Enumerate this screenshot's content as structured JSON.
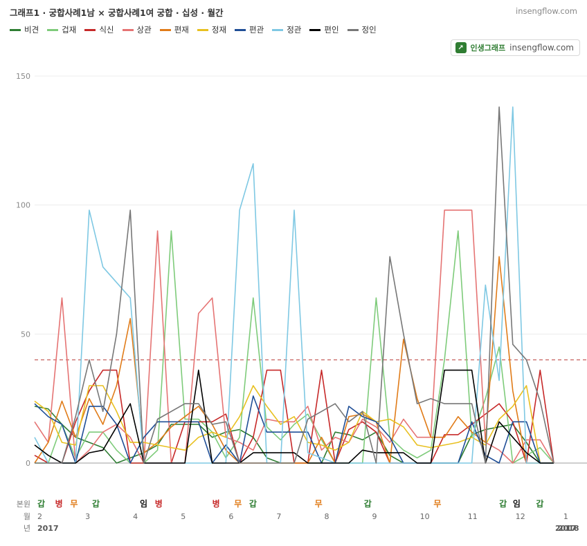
{
  "header": {
    "title": "그래프1 · 궁합사례1남 × 궁합사례1여 궁합 · 십성 · 월간",
    "site": "insengflow.com"
  },
  "badge": {
    "logo_text": "↗",
    "brand": "인생그래프",
    "site": "insengflow.com"
  },
  "chart_data": {
    "type": "line",
    "ylim": [
      0,
      150
    ],
    "y_ticks": [
      0,
      50,
      100,
      150
    ],
    "threshold": 40,
    "threshold_color": "#c0504d",
    "x_count": 38,
    "row_labels": {
      "bonwon": "본원",
      "month": "월",
      "year": "년"
    },
    "months": [
      {
        "i": 0,
        "label": "2"
      },
      {
        "i": 3.5,
        "label": "3"
      },
      {
        "i": 7,
        "label": "4"
      },
      {
        "i": 10.5,
        "label": "5"
      },
      {
        "i": 14,
        "label": "6"
      },
      {
        "i": 17.5,
        "label": "7"
      },
      {
        "i": 21,
        "label": "8"
      },
      {
        "i": 24.5,
        "label": "9"
      },
      {
        "i": 28,
        "label": "10"
      },
      {
        "i": 31.5,
        "label": "11"
      },
      {
        "i": 35,
        "label": "12"
      },
      {
        "i": 38.5,
        "label": "1"
      }
    ],
    "years": [
      {
        "i": 0,
        "label": "2017"
      },
      {
        "i": 37.9,
        "label": "2017"
      },
      {
        "i": 38.1,
        "label": "2018"
      }
    ],
    "bonwon": [
      {
        "i": 0,
        "char": "갑",
        "color": "#2e7d32"
      },
      {
        "i": 1.3,
        "char": "병",
        "color": "#c62828"
      },
      {
        "i": 2.4,
        "char": "무",
        "color": "#e07b18"
      },
      {
        "i": 4,
        "char": "갑",
        "color": "#2e7d32"
      },
      {
        "i": 7.5,
        "char": "임",
        "color": "#111111"
      },
      {
        "i": 8.6,
        "char": "병",
        "color": "#c62828"
      },
      {
        "i": 12.8,
        "char": "병",
        "color": "#c62828"
      },
      {
        "i": 14.4,
        "char": "무",
        "color": "#e07b18"
      },
      {
        "i": 15.5,
        "char": "갑",
        "color": "#2e7d32"
      },
      {
        "i": 20.3,
        "char": "무",
        "color": "#e07b18"
      },
      {
        "i": 23.9,
        "char": "갑",
        "color": "#2e7d32"
      },
      {
        "i": 29,
        "char": "무",
        "color": "#e07b18"
      },
      {
        "i": 33.8,
        "char": "갑",
        "color": "#2e7d32"
      },
      {
        "i": 34.8,
        "char": "임",
        "color": "#111111"
      },
      {
        "i": 36.5,
        "char": "갑",
        "color": "#2e7d32"
      }
    ],
    "series": [
      {
        "name": "비견",
        "color": "#2e7d32",
        "values": [
          22,
          21,
          15,
          10,
          8,
          6,
          0,
          2,
          4,
          7,
          15,
          15,
          15,
          10,
          12,
          13,
          10,
          2,
          0,
          0,
          0,
          0,
          12,
          11,
          9,
          12,
          3,
          0,
          0,
          0,
          0,
          0,
          11,
          13,
          14,
          15,
          8,
          0,
          0
        ]
      },
      {
        "name": "겁재",
        "color": "#7ecb7a",
        "values": [
          0,
          0,
          15,
          2,
          12,
          12,
          5,
          0,
          0,
          5,
          90,
          17,
          17,
          12,
          2,
          10,
          64,
          14,
          9,
          15,
          19,
          9,
          0,
          0,
          0,
          64,
          10,
          5,
          2,
          5,
          40,
          90,
          10,
          25,
          45,
          0,
          3,
          6,
          0
        ]
      },
      {
        "name": "식신",
        "color": "#c62828",
        "values": [
          3,
          0,
          0,
          16,
          28,
          36,
          36,
          0,
          0,
          0,
          0,
          16,
          16,
          16,
          19,
          0,
          10,
          36,
          36,
          0,
          0,
          36,
          0,
          13,
          16,
          12,
          0,
          0,
          0,
          0,
          11,
          11,
          15,
          19,
          23,
          16,
          0,
          36,
          0
        ]
      },
      {
        "name": "상관",
        "color": "#e57373",
        "values": [
          16,
          8,
          64,
          0,
          5,
          12,
          15,
          10,
          0,
          90,
          0,
          0,
          58,
          64,
          10,
          8,
          5,
          17,
          16,
          16,
          22,
          5,
          10,
          8,
          17,
          14,
          8,
          17,
          10,
          10,
          98,
          98,
          98,
          8,
          5,
          0,
          9,
          9,
          0
        ]
      },
      {
        "name": "편재",
        "color": "#e07b18",
        "values": [
          0,
          8,
          24,
          10,
          25,
          15,
          30,
          56,
          4,
          8,
          14,
          18,
          22,
          15,
          5,
          0,
          0,
          0,
          0,
          0,
          0,
          10,
          0,
          18,
          19,
          16,
          0,
          48,
          25,
          10,
          10,
          18,
          12,
          8,
          80,
          28,
          0,
          0,
          0
        ]
      },
      {
        "name": "정재",
        "color": "#e8c020",
        "values": [
          24,
          20,
          8,
          7,
          30,
          30,
          20,
          8,
          8,
          7,
          6,
          5,
          10,
          12,
          10,
          18,
          30,
          22,
          15,
          18,
          8,
          7,
          5,
          8,
          20,
          16,
          17,
          14,
          7,
          6,
          7,
          8,
          10,
          7,
          17,
          22,
          30,
          0,
          0
        ]
      },
      {
        "name": "편관",
        "color": "#1f4e96",
        "values": [
          23,
          18,
          15,
          0,
          22,
          22,
          15,
          0,
          10,
          16,
          16,
          16,
          16,
          0,
          7,
          0,
          26,
          12,
          12,
          12,
          12,
          0,
          0,
          22,
          18,
          16,
          10,
          0,
          0,
          0,
          0,
          0,
          16,
          3,
          0,
          16,
          16,
          0,
          0
        ]
      },
      {
        "name": "정관",
        "color": "#7ec8e3",
        "values": [
          10,
          0,
          0,
          0,
          98,
          76,
          70,
          64,
          0,
          0,
          0,
          0,
          0,
          0,
          0,
          98,
          116,
          0,
          0,
          98,
          4,
          2,
          0,
          0,
          0,
          0,
          0,
          0,
          0,
          0,
          0,
          0,
          0,
          69,
          32,
          138,
          0,
          0,
          0
        ]
      },
      {
        "name": "편인",
        "color": "#000000",
        "values": [
          7,
          3,
          0,
          0,
          4,
          5,
          14,
          23,
          0,
          0,
          0,
          0,
          36,
          0,
          0,
          0,
          4,
          4,
          4,
          4,
          0,
          0,
          0,
          0,
          5,
          4,
          4,
          4,
          0,
          0,
          36,
          36,
          36,
          0,
          16,
          10,
          4,
          0,
          0
        ]
      },
      {
        "name": "정인",
        "color": "#777777",
        "values": [
          0,
          0,
          0,
          18,
          40,
          20,
          50,
          98,
          0,
          17,
          20,
          23,
          23,
          15,
          16,
          0,
          0,
          0,
          0,
          0,
          17,
          20,
          23,
          16,
          20,
          0,
          80,
          50,
          23,
          25,
          23,
          23,
          23,
          0,
          138,
          46,
          40,
          24,
          0
        ]
      }
    ]
  }
}
